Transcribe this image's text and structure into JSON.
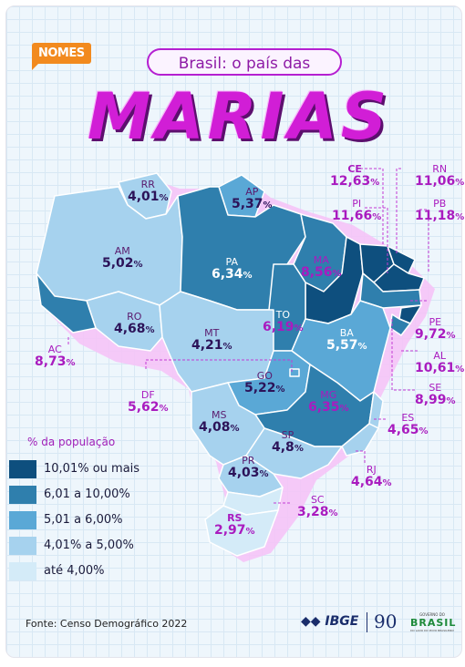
{
  "header": {
    "badge": "NOMES",
    "subtitle": "Brasil: o país das",
    "title": "MARIAS"
  },
  "legend": {
    "title": "% da população",
    "items": [
      {
        "label": "10,01% ou mais",
        "color": "#0e4f7e"
      },
      {
        "label": "6,01 a 10,00%",
        "color": "#2f7fad"
      },
      {
        "label": "5,01 a 6,00%",
        "color": "#5aa8d6"
      },
      {
        "label": "4,01% a 5,00%",
        "color": "#a6d2ee"
      },
      {
        "label": "até 4,00%",
        "color": "#d4ebf8"
      }
    ]
  },
  "states": [
    {
      "uf": "RR",
      "value": "4,01",
      "unit": "%"
    },
    {
      "uf": "AP",
      "value": "5,37",
      "unit": "%"
    },
    {
      "uf": "AM",
      "value": "5,02",
      "unit": "%"
    },
    {
      "uf": "PA",
      "value": "6,34",
      "unit": "%"
    },
    {
      "uf": "MA",
      "value": "8,56",
      "unit": "%"
    },
    {
      "uf": "CE",
      "value": "12,63",
      "unit": "%"
    },
    {
      "uf": "PI",
      "value": "11,66",
      "unit": "%"
    },
    {
      "uf": "RN",
      "value": "11,06",
      "unit": "%"
    },
    {
      "uf": "PB",
      "value": "11,18",
      "unit": "%"
    },
    {
      "uf": "PE",
      "value": "9,72",
      "unit": "%"
    },
    {
      "uf": "AL",
      "value": "10,61",
      "unit": "%"
    },
    {
      "uf": "SE",
      "value": "8,99",
      "unit": "%"
    },
    {
      "uf": "BA",
      "value": "5,57",
      "unit": "%"
    },
    {
      "uf": "TO",
      "value": "6,19",
      "unit": "%"
    },
    {
      "uf": "RO",
      "value": "4,68",
      "unit": "%"
    },
    {
      "uf": "AC",
      "value": "8,73",
      "unit": "%"
    },
    {
      "uf": "MT",
      "value": "4,21",
      "unit": "%"
    },
    {
      "uf": "DF",
      "value": "5,62",
      "unit": "%"
    },
    {
      "uf": "GO",
      "value": "5,22",
      "unit": "%"
    },
    {
      "uf": "MG",
      "value": "6,35",
      "unit": "%"
    },
    {
      "uf": "MS",
      "value": "4,08",
      "unit": "%"
    },
    {
      "uf": "ES",
      "value": "4,65",
      "unit": "%"
    },
    {
      "uf": "SP",
      "value": "4,8",
      "unit": "%"
    },
    {
      "uf": "RJ",
      "value": "4,64",
      "unit": "%"
    },
    {
      "uf": "PR",
      "value": "4,03",
      "unit": "%"
    },
    {
      "uf": "SC",
      "value": "3,28",
      "unit": "%"
    },
    {
      "uf": "RS",
      "value": "2,97",
      "unit": "%"
    }
  ],
  "footer": {
    "source": "Fonte: Censo Demográfico 2022",
    "ibge": "IBGE",
    "anniversary": "90",
    "gov_top": "GOVERNO DO",
    "gov_main": "BRASIL",
    "gov_bottom": "DO LADO DO POVO BRASILEIRO"
  }
}
